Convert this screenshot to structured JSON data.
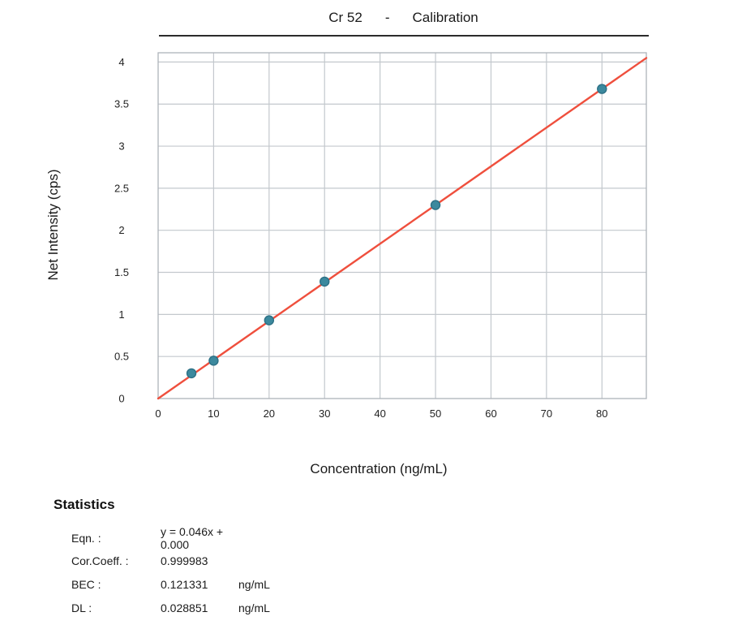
{
  "header": {
    "element": "Cr 52",
    "dash": "-",
    "label": "Calibration"
  },
  "chart_data": {
    "type": "scatter",
    "title": "Cr 52 - Calibration",
    "xlabel": "Concentration (ng/mL)",
    "ylabel": "Net Intensity (cps)",
    "xlim": [
      0,
      88
    ],
    "ylim": [
      0,
      4.11
    ],
    "x_ticks": [
      0,
      10,
      20,
      30,
      40,
      50,
      60,
      70,
      80
    ],
    "y_ticks": [
      0,
      0.5,
      1,
      1.5,
      2,
      2.5,
      3,
      3.5,
      4
    ],
    "grid": true,
    "points": [
      {
        "x": 6,
        "y": 0.3
      },
      {
        "x": 10,
        "y": 0.45
      },
      {
        "x": 20,
        "y": 0.93
      },
      {
        "x": 30,
        "y": 1.39
      },
      {
        "x": 50,
        "y": 2.3
      },
      {
        "x": 80,
        "y": 3.68
      }
    ],
    "fit_line": {
      "slope": 0.046,
      "intercept": 0.0,
      "x_start": 0,
      "x_end": 88
    },
    "colors": {
      "fit_line": "#ef4f3d",
      "marker_fill": "#3c899e",
      "marker_edge": "#2d7186",
      "grid": "#c3c8cd",
      "border": "#aeb3b9",
      "tick_text": "#222222"
    }
  },
  "statistics": {
    "heading": "Statistics",
    "rows": [
      {
        "label": "Eqn. :",
        "value": "y = 0.046x + 0.000",
        "unit": ""
      },
      {
        "label": "Cor.Coeff. :",
        "value": "0.999983",
        "unit": ""
      },
      {
        "label": "BEC :",
        "value": "0.121331",
        "unit": "ng/mL"
      },
      {
        "label": "DL :",
        "value": "0.028851",
        "unit": "ng/mL"
      }
    ]
  }
}
